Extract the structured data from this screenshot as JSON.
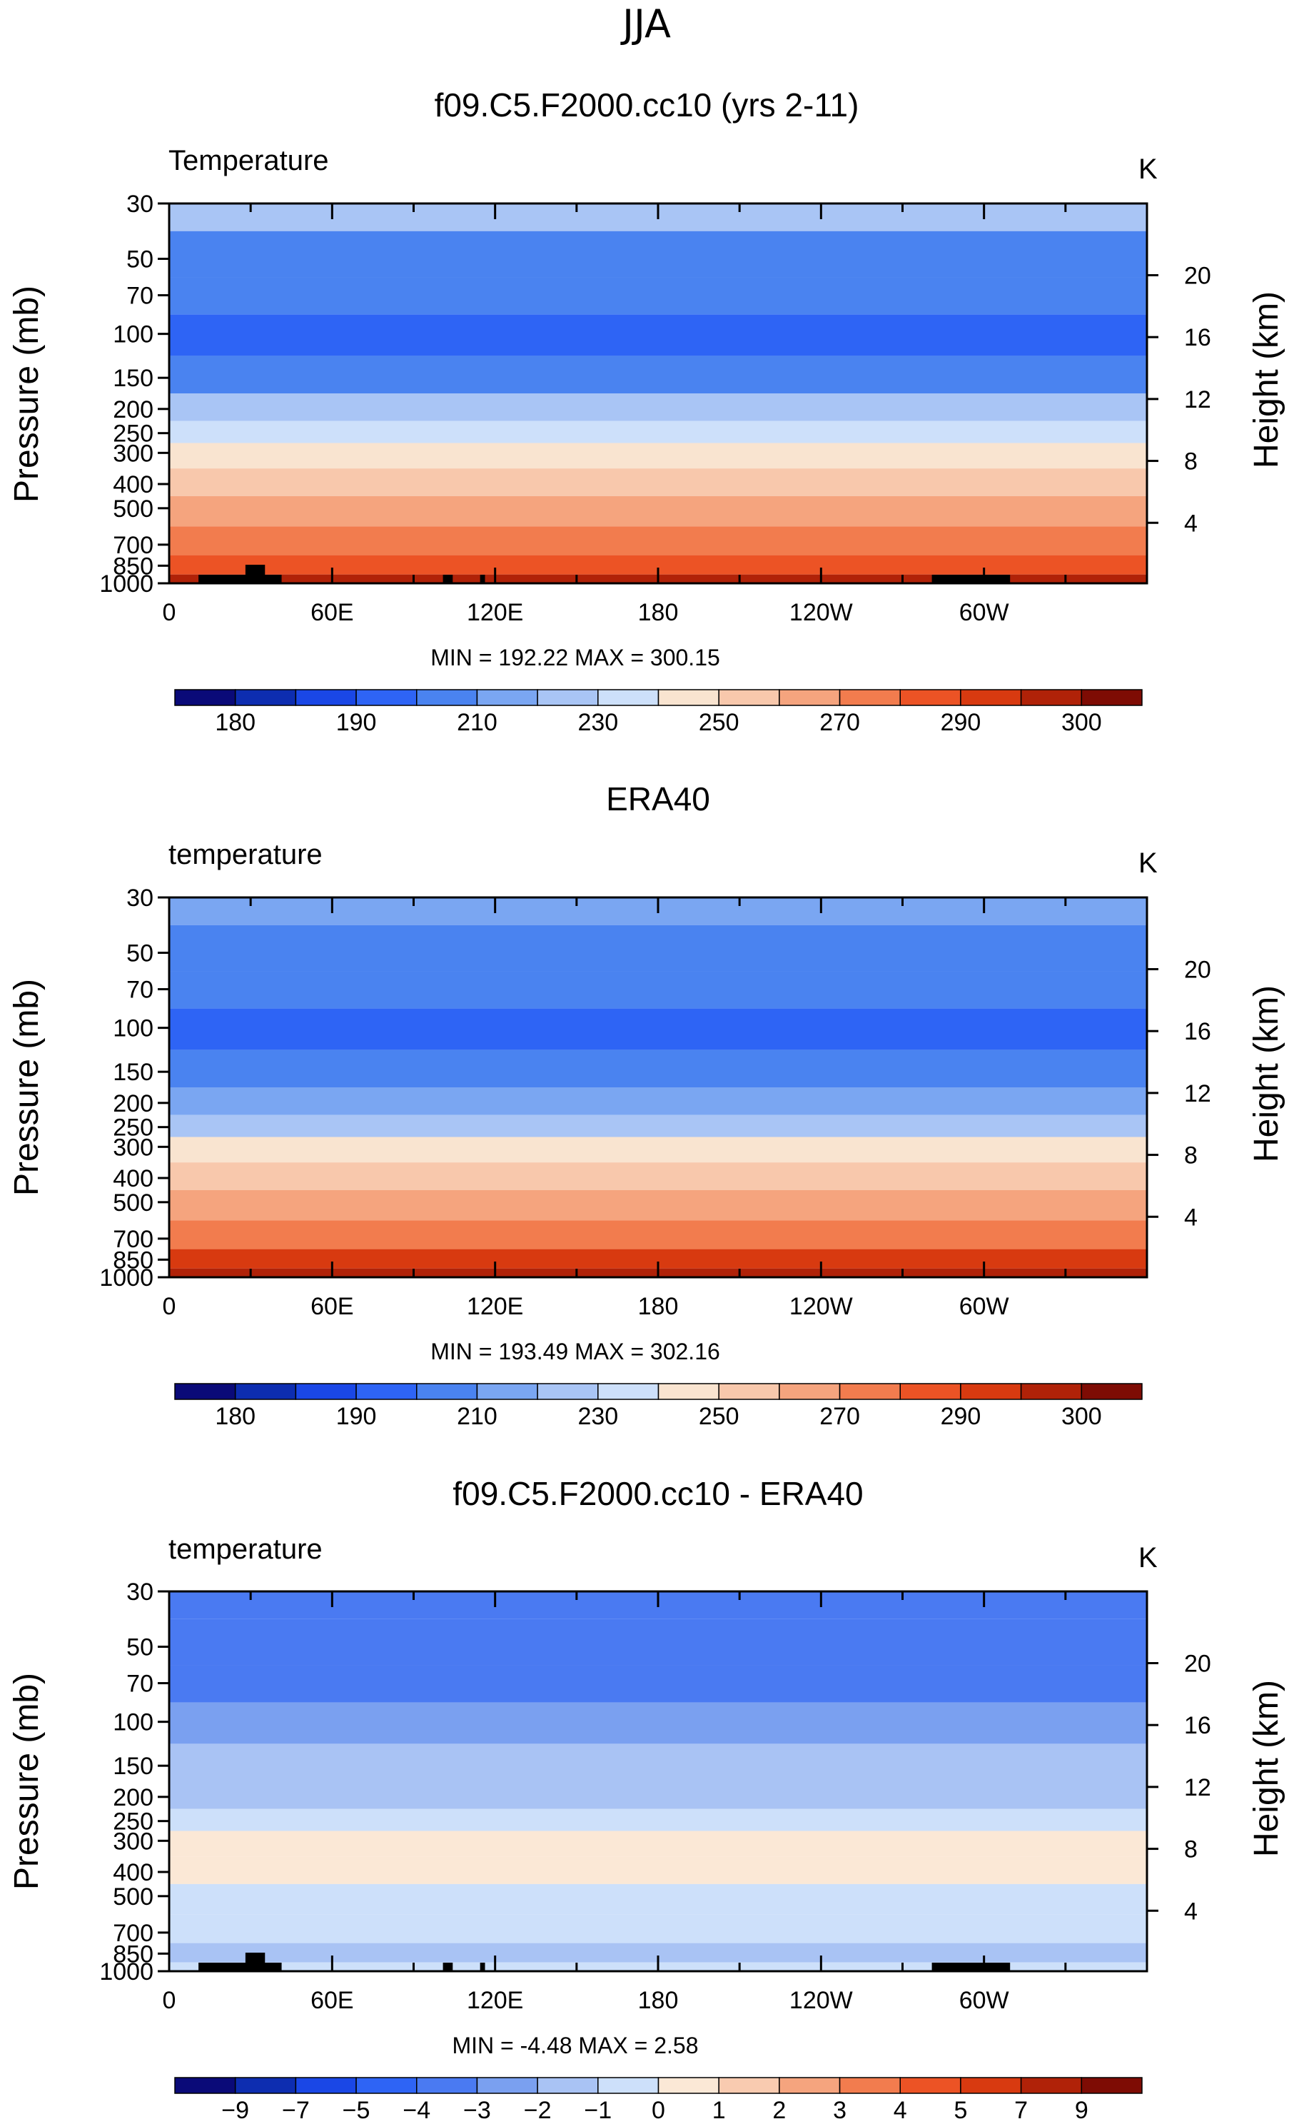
{
  "season": "JJA",
  "chart_data": [
    {
      "type": "heatmap",
      "title": "f09.C5.F2000.cc10 (yrs 2-11)",
      "field_label": "Temperature",
      "units": "K",
      "ylabel": "Pressure (mb)",
      "y2label": "Height (km)",
      "x_ticks": [
        "0",
        "60E",
        "120E",
        "180",
        "120W",
        "60W"
      ],
      "y_ticks": [
        30,
        50,
        70,
        100,
        150,
        200,
        250,
        300,
        400,
        500,
        700,
        850,
        1000
      ],
      "y2_ticks": [
        20,
        16,
        12,
        8,
        4
      ],
      "ylim": [
        30,
        1000
      ],
      "xlim": [
        0,
        360
      ],
      "stats": "MIN = 192.22 MAX = 300.15",
      "topography": true,
      "levels": [
        {
          "p": 30,
          "t": 220
        },
        {
          "p": 50,
          "t": 208
        },
        {
          "p": 70,
          "t": 200
        },
        {
          "p": 100,
          "t": 196
        },
        {
          "p": 150,
          "t": 208
        },
        {
          "p": 200,
          "t": 220
        },
        {
          "p": 250,
          "t": 230
        },
        {
          "p": 300,
          "t": 240
        },
        {
          "p": 400,
          "t": 252
        },
        {
          "p": 500,
          "t": 262
        },
        {
          "p": 700,
          "t": 278
        },
        {
          "p": 850,
          "t": 288
        },
        {
          "p": 1000,
          "t": 296
        }
      ],
      "colorbar": {
        "labels": [
          "180",
          "190",
          "210",
          "230",
          "250",
          "270",
          "290",
          "300"
        ],
        "colors": [
          "#0a0a78",
          "#0d2db0",
          "#1a47e6",
          "#2e64f5",
          "#4a83f0",
          "#7aa6f2",
          "#a9c5f5",
          "#cde0fa",
          "#f9e4d0",
          "#f8c8ac",
          "#f5a47e",
          "#f27c4e",
          "#ec5325",
          "#d83a10",
          "#b02208",
          "#7e0c04"
        ]
      }
    },
    {
      "type": "heatmap",
      "title": "ERA40",
      "field_label": "temperature",
      "units": "K",
      "ylabel": "Pressure (mb)",
      "y2label": "Height (km)",
      "x_ticks": [
        "0",
        "60E",
        "120E",
        "180",
        "120W",
        "60W"
      ],
      "y_ticks": [
        30,
        50,
        70,
        100,
        150,
        200,
        250,
        300,
        400,
        500,
        700,
        850,
        1000
      ],
      "y2_ticks": [
        20,
        16,
        12,
        8,
        4
      ],
      "ylim": [
        30,
        1000
      ],
      "xlim": [
        0,
        360
      ],
      "stats": "MIN = 193.49 MAX = 302.16",
      "topography": false,
      "levels": [
        {
          "p": 30,
          "t": 218
        },
        {
          "p": 50,
          "t": 208
        },
        {
          "p": 70,
          "t": 202
        },
        {
          "p": 100,
          "t": 197
        },
        {
          "p": 150,
          "t": 208
        },
        {
          "p": 200,
          "t": 219
        },
        {
          "p": 250,
          "t": 229
        },
        {
          "p": 300,
          "t": 240
        },
        {
          "p": 400,
          "t": 252
        },
        {
          "p": 500,
          "t": 263
        },
        {
          "p": 700,
          "t": 279
        },
        {
          "p": 850,
          "t": 290
        },
        {
          "p": 1000,
          "t": 298
        }
      ],
      "colorbar": {
        "labels": [
          "180",
          "190",
          "210",
          "230",
          "250",
          "270",
          "290",
          "300"
        ],
        "colors": [
          "#0a0a78",
          "#0d2db0",
          "#1a47e6",
          "#2e64f5",
          "#4a83f0",
          "#7aa6f2",
          "#a9c5f5",
          "#cde0fa",
          "#f9e4d0",
          "#f8c8ac",
          "#f5a47e",
          "#f27c4e",
          "#ec5325",
          "#d83a10",
          "#b02208",
          "#7e0c04"
        ]
      }
    },
    {
      "type": "heatmap",
      "title": "f09.C5.F2000.cc10 - ERA40",
      "field_label": "temperature",
      "units": "K",
      "ylabel": "Pressure (mb)",
      "y2label": "Height (km)",
      "x_ticks": [
        "0",
        "60E",
        "120E",
        "180",
        "120W",
        "60W"
      ],
      "y_ticks": [
        30,
        50,
        70,
        100,
        150,
        200,
        250,
        300,
        400,
        500,
        700,
        850,
        1000
      ],
      "y2_ticks": [
        20,
        16,
        12,
        8,
        4
      ],
      "ylim": [
        30,
        1000
      ],
      "xlim": [
        0,
        360
      ],
      "stats": "MIN = -4.48 MAX = 2.58",
      "topography": true,
      "levels": [
        {
          "p": 30,
          "t": -3.5
        },
        {
          "p": 50,
          "t": -3.5
        },
        {
          "p": 70,
          "t": -3.2
        },
        {
          "p": 100,
          "t": -2.5
        },
        {
          "p": 150,
          "t": -1.8
        },
        {
          "p": 200,
          "t": -1.5
        },
        {
          "p": 250,
          "t": -0.5
        },
        {
          "p": 300,
          "t": 0.5
        },
        {
          "p": 400,
          "t": 0.5
        },
        {
          "p": 500,
          "t": -0.5
        },
        {
          "p": 700,
          "t": -0.5
        },
        {
          "p": 850,
          "t": -1.5
        },
        {
          "p": 1000,
          "t": -0.5
        }
      ],
      "colorbar": {
        "labels": [
          "-9",
          "-7",
          "-5",
          "-4",
          "-3",
          "-2",
          "-1",
          "0",
          "1",
          "2",
          "3",
          "4",
          "5",
          "7",
          "9"
        ],
        "colors": [
          "#0a0a78",
          "#0d2db0",
          "#1a47e6",
          "#2e64f5",
          "#4a7af2",
          "#7aa0f0",
          "#a9c3f4",
          "#cde0fa",
          "#fbe8d6",
          "#f9cbb0",
          "#f5a47e",
          "#f27c4e",
          "#ec5325",
          "#d83a10",
          "#b02208",
          "#7e0c04"
        ]
      }
    }
  ]
}
